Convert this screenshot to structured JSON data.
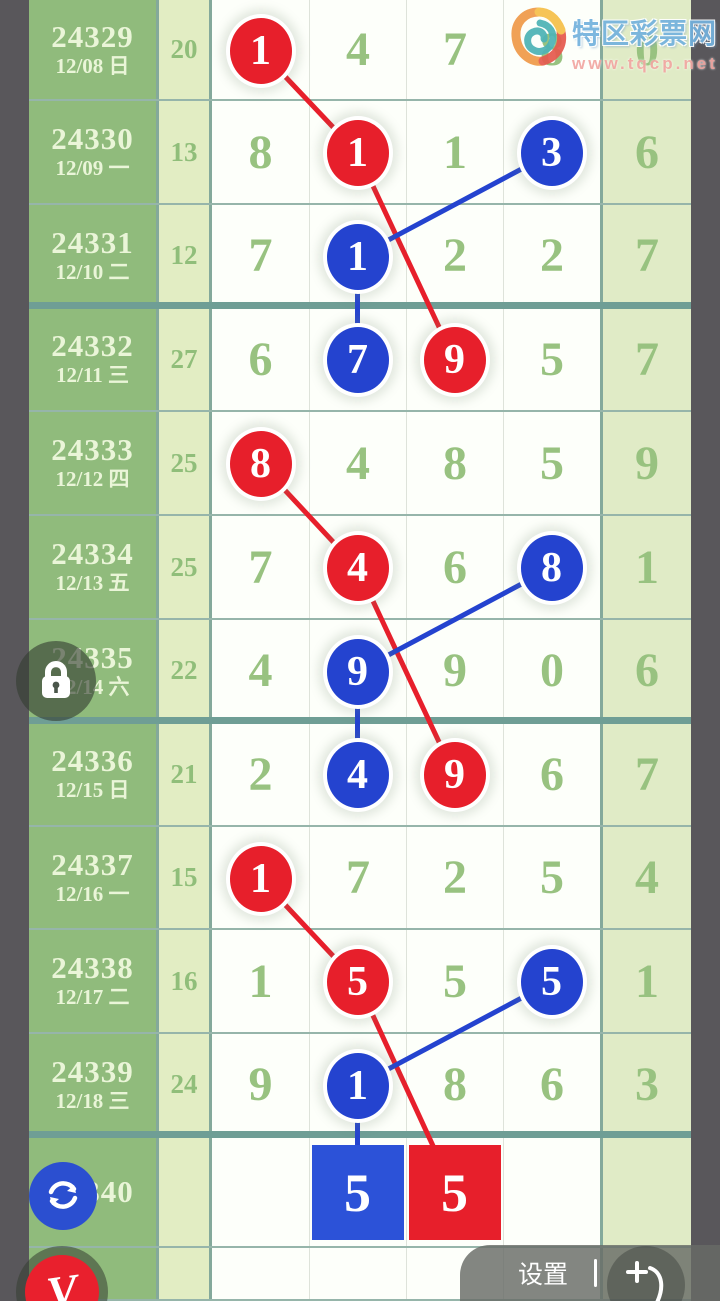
{
  "site": {
    "name": "特区彩票网",
    "url": "www.tqcp.net"
  },
  "bottom_bar": {
    "settings_label": "设置"
  },
  "floating": {
    "logo_letter": "V"
  },
  "colors": {
    "red": "#e71f2b",
    "blue": "#2443cf",
    "square_red": "#e71f2b",
    "square_blue": "#2c52d8",
    "refresh_button": "#2b4fd0",
    "period_cell_green": "#90bb7c",
    "stat_cell_green": "#e2edc3",
    "digit_text_green": "#98c280"
  },
  "chart_data": {
    "type": "table",
    "description": "Lottery number trend chart: period, date, sum stat, five digit columns; red/blue circled digits joined by trend lines",
    "rows": [
      {
        "period": "24329",
        "date": "12/08 日",
        "stat": "20",
        "digits": [
          "1",
          "4",
          "7",
          "8",
          "0"
        ],
        "marks": {
          "0": "red"
        }
      },
      {
        "period": "24330",
        "date": "12/09 一",
        "stat": "13",
        "digits": [
          "8",
          "1",
          "1",
          "3",
          "6"
        ],
        "marks": {
          "1": "red",
          "3": "blue"
        }
      },
      {
        "period": "24331",
        "date": "12/10 二",
        "stat": "12",
        "digits": [
          "7",
          "1",
          "2",
          "2",
          "7"
        ],
        "marks": {
          "1": "blue"
        }
      },
      {
        "period": "24332",
        "date": "12/11 三",
        "stat": "27",
        "digits": [
          "6",
          "7",
          "9",
          "5",
          "7"
        ],
        "marks": {
          "1": "blue",
          "2": "red"
        }
      },
      {
        "period": "24333",
        "date": "12/12 四",
        "stat": "25",
        "digits": [
          "8",
          "4",
          "8",
          "5",
          "9"
        ],
        "marks": {
          "0": "red"
        }
      },
      {
        "period": "24334",
        "date": "12/13 五",
        "stat": "25",
        "digits": [
          "7",
          "4",
          "6",
          "8",
          "1"
        ],
        "marks": {
          "1": "red",
          "3": "blue"
        }
      },
      {
        "period": "24335",
        "date": "12/14 六",
        "stat": "22",
        "digits": [
          "4",
          "9",
          "9",
          "0",
          "6"
        ],
        "marks": {
          "1": "blue"
        }
      },
      {
        "period": "24336",
        "date": "12/15 日",
        "stat": "21",
        "digits": [
          "2",
          "4",
          "9",
          "6",
          "7"
        ],
        "marks": {
          "1": "blue",
          "2": "red"
        }
      },
      {
        "period": "24337",
        "date": "12/16 一",
        "stat": "15",
        "digits": [
          "1",
          "7",
          "2",
          "5",
          "4"
        ],
        "marks": {
          "0": "red"
        }
      },
      {
        "period": "24338",
        "date": "12/17 二",
        "stat": "16",
        "digits": [
          "1",
          "5",
          "5",
          "5",
          "1"
        ],
        "marks": {
          "1": "red",
          "3": "blue"
        }
      },
      {
        "period": "24339",
        "date": "12/18 三",
        "stat": "24",
        "digits": [
          "9",
          "1",
          "8",
          "6",
          "3"
        ],
        "marks": {
          "1": "blue"
        }
      }
    ],
    "next_row": {
      "period": "24340",
      "squares": [
        {
          "col": 1,
          "color": "blue",
          "value": "5"
        },
        {
          "col": 2,
          "color": "red",
          "value": "5"
        }
      ]
    },
    "lines": {
      "red": [
        [
          [
            0,
            0
          ],
          [
            1,
            1
          ]
        ],
        [
          [
            1,
            1
          ],
          [
            3,
            2
          ]
        ],
        [
          [
            4,
            0
          ],
          [
            5,
            1
          ]
        ],
        [
          [
            5,
            1
          ],
          [
            7,
            2
          ]
        ],
        [
          [
            8,
            0
          ],
          [
            9,
            1
          ]
        ],
        [
          [
            9,
            1
          ],
          [
            11,
            2
          ]
        ]
      ],
      "blue": [
        [
          [
            1,
            3
          ],
          [
            2,
            1
          ]
        ],
        [
          [
            2,
            1
          ],
          [
            3,
            1
          ]
        ],
        [
          [
            5,
            3
          ],
          [
            6,
            1
          ]
        ],
        [
          [
            6,
            1
          ],
          [
            7,
            1
          ]
        ],
        [
          [
            9,
            3
          ],
          [
            10,
            1
          ]
        ],
        [
          [
            10,
            1
          ],
          [
            11,
            1
          ]
        ]
      ]
    }
  }
}
